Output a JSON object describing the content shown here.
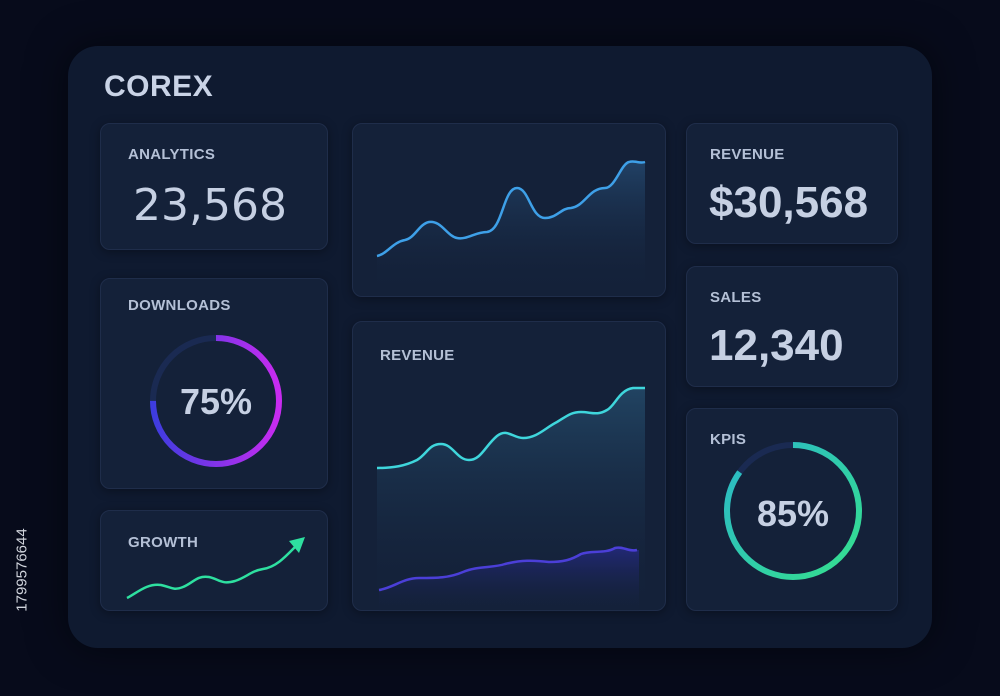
{
  "app": {
    "brand": "COREX"
  },
  "analytics": {
    "title": "ANALYTICS",
    "value": "23,568"
  },
  "downloads": {
    "title": "DOWNLOADS",
    "percent_label": "75%",
    "percent": 0.75
  },
  "growth": {
    "title": "GROWTH"
  },
  "top_chart": {
    "title": ""
  },
  "revenue_chart": {
    "title": "REVENUE"
  },
  "revenue_stat": {
    "title": "REVENUE",
    "value": "$30,568"
  },
  "sales": {
    "title": "SALES",
    "value": "12,340"
  },
  "kpis": {
    "title": "KPIS",
    "percent_label": "85%",
    "percent": 0.85
  },
  "side_caption": "1799576644",
  "colors": {
    "background": "#070b1b",
    "panel": "#0f1a30",
    "card": "#142139",
    "line_blue": "#3ea0e8",
    "line_cyan": "#3fd6dc",
    "line_indigo": "#4b3fd8",
    "ring_downloads_start": "#3d3ce0",
    "ring_downloads_end": "#c92bf0",
    "ring_kpi_start": "#2bb7c9",
    "ring_kpi_end": "#35e08d",
    "growth_line": "#2ee0a0"
  },
  "icons": {
    "growth_arrow": "arrow-up-right-icon"
  }
}
